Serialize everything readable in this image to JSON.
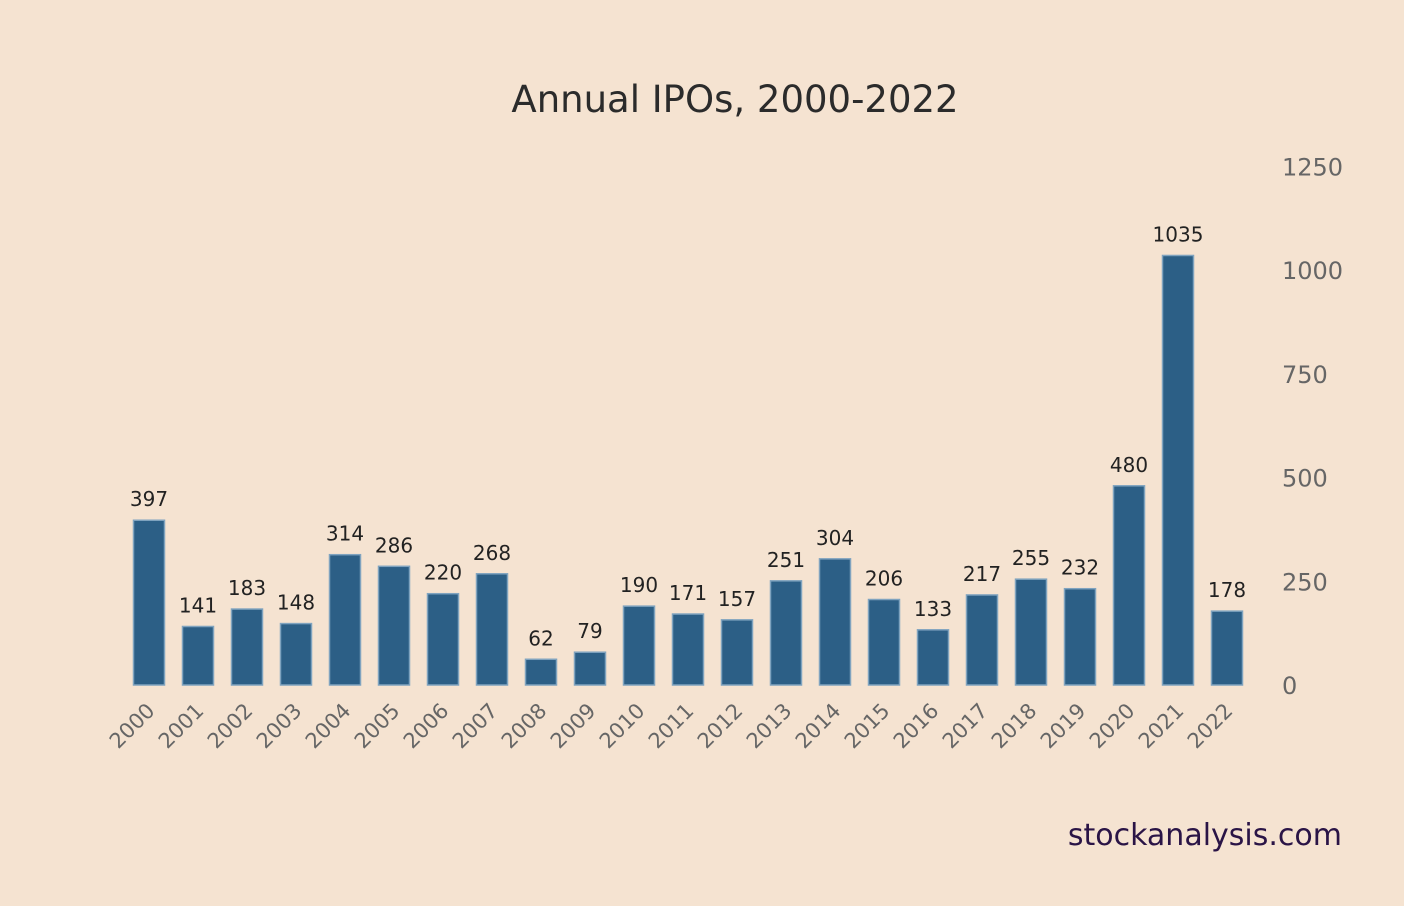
{
  "chart_data": {
    "type": "bar",
    "title": "Annual IPOs, 2000-2022",
    "xlabel": "",
    "ylabel": "",
    "ylim": [
      0,
      1250
    ],
    "y_ticks": [
      0,
      250,
      500,
      750,
      1000,
      1250
    ],
    "y_axis_position": "right",
    "grid": false,
    "categories": [
      "2000",
      "2001",
      "2002",
      "2003",
      "2004",
      "2005",
      "2006",
      "2007",
      "2008",
      "2009",
      "2010",
      "2011",
      "2012",
      "2013",
      "2014",
      "2015",
      "2016",
      "2017",
      "2018",
      "2019",
      "2020",
      "2021",
      "2022"
    ],
    "values": [
      397,
      141,
      183,
      148,
      314,
      286,
      220,
      268,
      62,
      79,
      190,
      171,
      157,
      251,
      304,
      206,
      133,
      217,
      255,
      232,
      480,
      1035,
      178
    ],
    "bar_color": "#2c5f86",
    "bar_edge_color": "#7fa3bf"
  },
  "footer": {
    "brand": "stockanalysis.com"
  }
}
